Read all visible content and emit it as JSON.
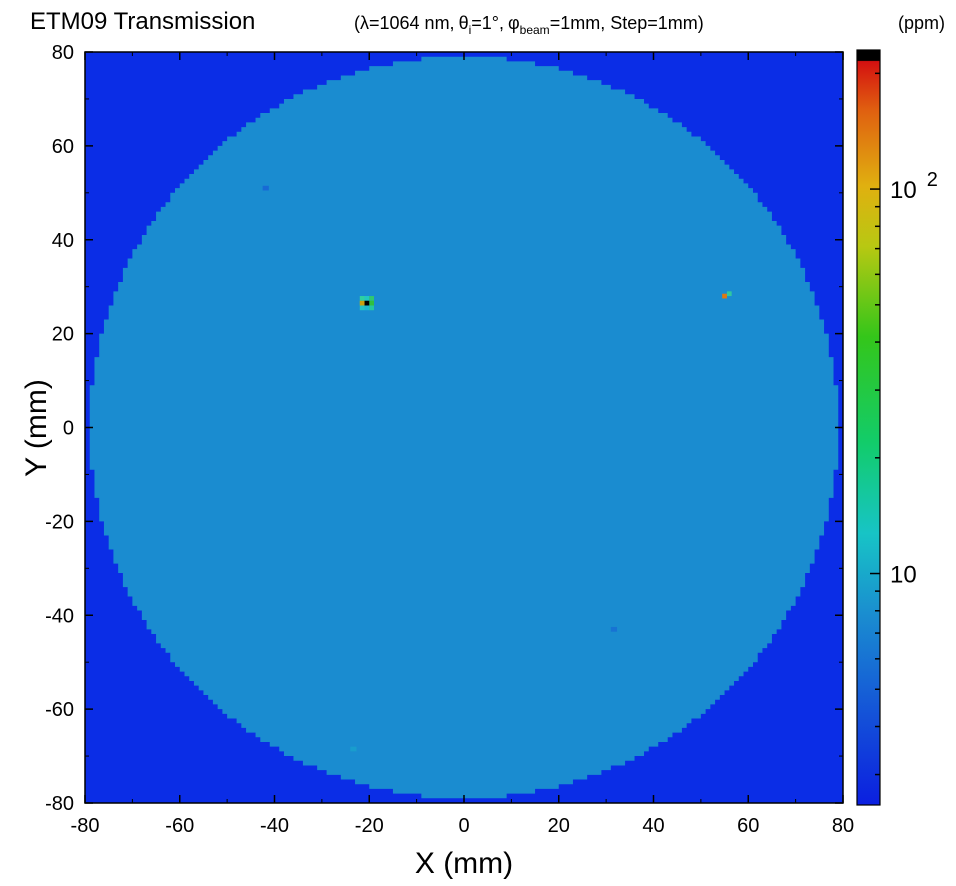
{
  "chart_data": {
    "type": "heatmap",
    "title": "ETM09 Transmission",
    "subtitle": {
      "open": "(",
      "lambda_part": "λ=1064 nm,",
      "theta_sym": "θ",
      "theta_sub": "i",
      "theta_rest": "=1°,",
      "phi_sym": "φ",
      "phi_sub": "beam",
      "phi_rest": "=1mm, Step=1mm)"
    },
    "xlabel": "X (mm)",
    "ylabel": "Y (mm)",
    "xlim": [
      -80,
      80
    ],
    "ylim": [
      -80,
      80
    ],
    "xticks": [
      "-80",
      "-60",
      "-40",
      "-20",
      "0",
      "20",
      "40",
      "60",
      "80"
    ],
    "yticks": [
      "80",
      "60",
      "40",
      "20",
      "0",
      "-20",
      "-40",
      "-60",
      "-80"
    ],
    "grid": false,
    "colorbar": {
      "unit": "(ppm)",
      "scale": "log",
      "range": [
        2.5,
        230
      ],
      "labels": [
        {
          "base": "10",
          "exp": "",
          "value": 10
        },
        {
          "base": "10",
          "exp": "2",
          "value": 100
        }
      ]
    },
    "disk": {
      "shape": "circle",
      "center": [
        0,
        0
      ],
      "radius_mm": 79,
      "transmission_ppm": 4.5,
      "color": "#1a8cd0"
    },
    "background_color": "#0b2de6",
    "hotspots": [
      {
        "x": -20.5,
        "y": 26.5,
        "value_ppm": 230,
        "label": "defect"
      },
      {
        "x": 55,
        "y": 28,
        "value_ppm": 140,
        "label": "defect"
      },
      {
        "x": -23.5,
        "y": -68.5,
        "value_ppm": 9,
        "label": "defect"
      },
      {
        "x": 31.5,
        "y": -43,
        "value_ppm": 6,
        "label": "defect"
      },
      {
        "x": -42,
        "y": 51,
        "value_ppm": 5.5,
        "label": "defect"
      }
    ]
  }
}
